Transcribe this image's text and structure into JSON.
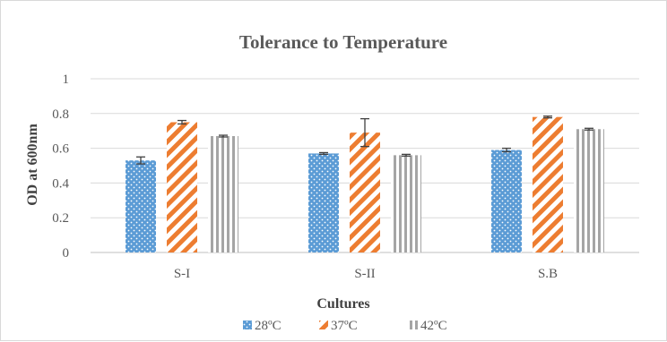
{
  "chart_data": {
    "type": "bar",
    "title": "Tolerance to Temperature",
    "xlabel": "Cultures",
    "ylabel": "OD at  600nm",
    "categories": [
      "S-I",
      "S-II",
      "S.B"
    ],
    "ylim": [
      0,
      1
    ],
    "yticks": [
      "0",
      "0.2",
      "0.4",
      "0.6",
      "0.8",
      "1"
    ],
    "ytick_values": [
      0,
      0.2,
      0.4,
      0.6,
      0.8,
      1
    ],
    "grid": true,
    "legend_position": "bottom",
    "series": [
      {
        "name": "28ºC",
        "values": [
          0.53,
          0.57,
          0.59
        ],
        "errors": [
          0.02,
          0.005,
          0.01
        ],
        "color": "#5b9bd5",
        "pattern": "dots"
      },
      {
        "name": "37ºC",
        "values": [
          0.75,
          0.69,
          0.78
        ],
        "errors": [
          0.01,
          0.08,
          0.005
        ],
        "color": "#ed7d31",
        "pattern": "diagonal"
      },
      {
        "name": "42ºC",
        "values": [
          0.67,
          0.56,
          0.71
        ],
        "errors": [
          0.005,
          0.005,
          0.005
        ],
        "color": "#a5a5a5",
        "pattern": "vertical"
      }
    ]
  }
}
